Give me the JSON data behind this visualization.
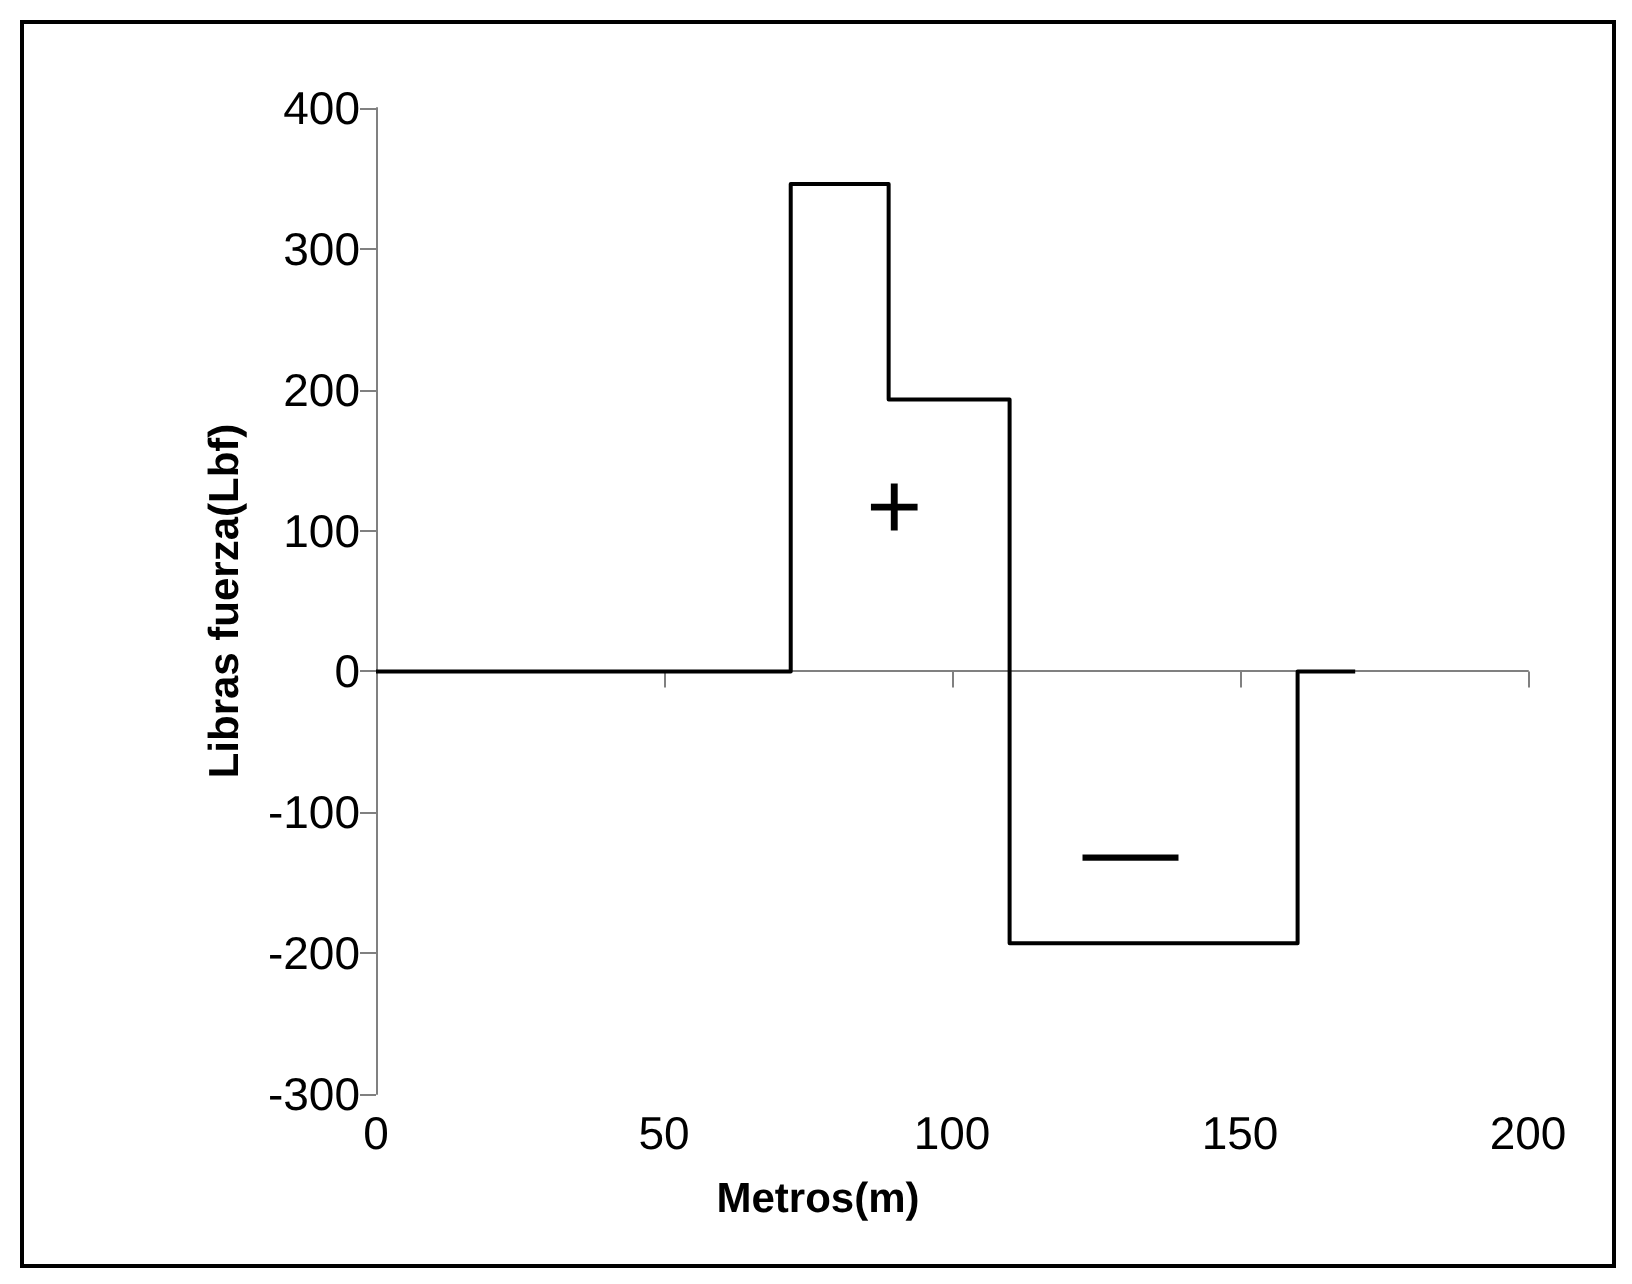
{
  "chart_data": {
    "type": "line",
    "xlabel": "Metros(m)",
    "ylabel": "Libras fuerza(Lbf)",
    "series": [
      {
        "color": "#000000",
        "x": [
          0,
          72,
          72,
          89,
          89,
          110,
          110,
          160,
          160,
          170
        ],
        "values": [
          0,
          0,
          346,
          346,
          193,
          193,
          -193,
          -193,
          0,
          0
        ]
      }
    ],
    "xlim": [
      0,
      200
    ],
    "xticks": [
      0,
      50,
      100,
      150,
      200
    ],
    "ylim": [
      -300,
      400
    ],
    "yticks": [
      -300,
      -200,
      -100,
      0,
      100,
      200,
      300,
      400
    ],
    "marker": "none",
    "line_style": "solid",
    "annotations": [
      "+",
      "—"
    ]
  }
}
